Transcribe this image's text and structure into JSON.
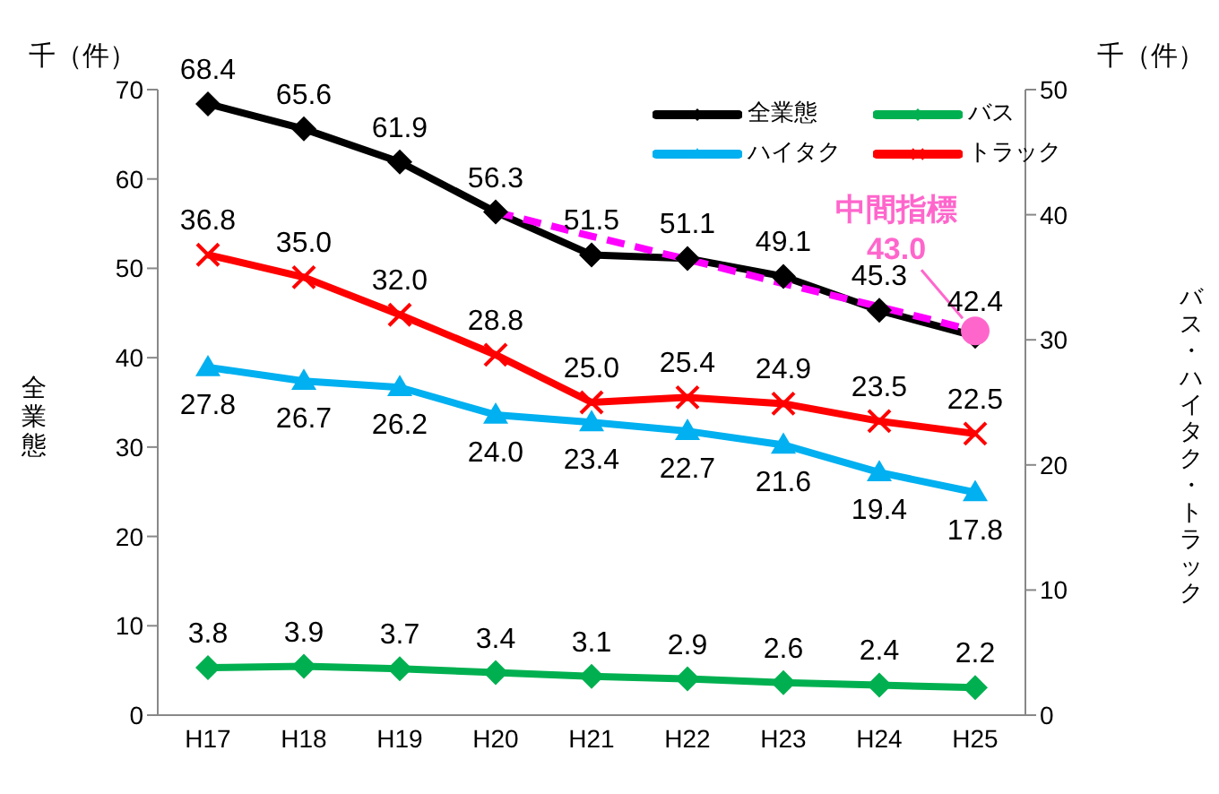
{
  "chart_data": {
    "type": "line",
    "ylabel": "全業態",
    "y2label": "バス・ハイタク・トラック",
    "categories": [
      "H17",
      "H18",
      "H19",
      "H20",
      "H21",
      "H22",
      "H23",
      "H24",
      "H25"
    ],
    "ylim": [
      0,
      70
    ],
    "yticks": [
      0,
      10,
      20,
      30,
      40,
      50,
      60,
      70
    ],
    "y2lim": [
      0,
      50
    ],
    "y2ticks": [
      0,
      10,
      20,
      30,
      40,
      50
    ],
    "legend": "top right",
    "grid": false,
    "annotations": [
      "千（件）",
      "千（件）",
      {
        "text": "中間指標\n43.0",
        "x": "H25",
        "y": 43.0
      }
    ],
    "series": [
      {
        "name": "全業態",
        "color": "#000000",
        "marker": "diamond",
        "values": [
          68.4,
          65.6,
          61.9,
          56.3,
          51.5,
          51.1,
          49.1,
          45.3,
          42.4
        ],
        "value_labels": [
          "68.4",
          "65.6",
          "61.9",
          "56.3",
          "51.5",
          "51.1",
          "49.1",
          "45.3",
          "42.4"
        ]
      },
      {
        "name": "バス",
        "color": "#00b050",
        "marker": "diamond",
        "axis": "y2",
        "values": [
          3.8,
          3.9,
          3.7,
          3.4,
          3.1,
          2.9,
          2.6,
          2.4,
          2.2
        ],
        "value_labels": [
          "3.8",
          "3.9",
          "3.7",
          "3.4",
          "3.1",
          "2.9",
          "2.6",
          "2.4",
          "2.2"
        ]
      },
      {
        "name": "ハイタク",
        "color": "#00b0f0",
        "marker": "triangle",
        "axis": "y2",
        "values": [
          27.8,
          26.7,
          26.2,
          24.0,
          23.4,
          22.7,
          21.6,
          19.4,
          17.8
        ],
        "value_labels": [
          "27.8",
          "26.7",
          "26.2",
          "24.0",
          "23.4",
          "22.7",
          "21.6",
          "19.4",
          "17.8"
        ]
      },
      {
        "name": "トラック",
        "color": "#ff0000",
        "marker": "cross",
        "axis": "y2",
        "values": [
          36.8,
          35.0,
          32.0,
          28.8,
          25.0,
          25.4,
          24.9,
          23.5,
          22.5
        ],
        "value_labels": [
          "36.8",
          "35.0",
          "32.0",
          "28.8",
          "25.0",
          "25.4",
          "24.9",
          "23.5",
          "22.5"
        ]
      },
      {
        "color": "#ff00ff",
        "marker": "none",
        "line_style": "dashed",
        "values": [
          null,
          null,
          null,
          56.3,
          53.6,
          51.0,
          48.3,
          45.7,
          43.0
        ]
      },
      {
        "type": "scatter",
        "color": "#ff66cc",
        "marker": "circle",
        "values": [
          null,
          null,
          null,
          null,
          null,
          null,
          null,
          null,
          43.0
        ]
      }
    ]
  }
}
